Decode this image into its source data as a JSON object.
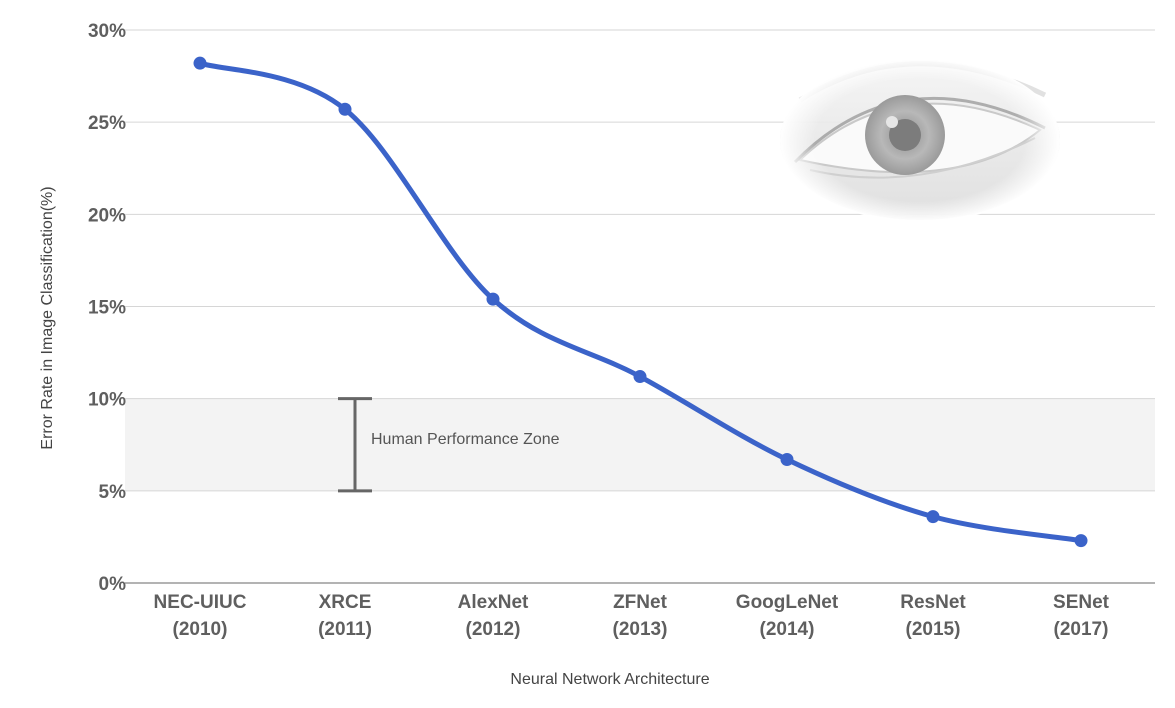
{
  "chart_data": {
    "type": "line",
    "categories": [
      [
        "NEC-UIUC",
        "(2010)"
      ],
      [
        "XRCE",
        "(2011)"
      ],
      [
        "AlexNet",
        "(2012)"
      ],
      [
        "ZFNet",
        "(2013)"
      ],
      [
        "GoogLeNet",
        "(2014)"
      ],
      [
        "ResNet",
        "(2015)"
      ],
      [
        "SENet",
        "(2017)"
      ]
    ],
    "series": [
      {
        "values": [
          28.2,
          25.7,
          15.4,
          11.2,
          6.7,
          3.6,
          2.3
        ],
        "color": "#3b63c9"
      }
    ],
    "xlabel": "Neural Network Architecture",
    "ylabel": "Error Rate in Image Classification(%)",
    "ylim": [
      0,
      30
    ],
    "yticks": [
      0,
      5,
      10,
      15,
      20,
      25,
      30
    ],
    "ytick_labels": [
      "0%",
      "5%",
      "10%",
      "15%",
      "20%",
      "25%",
      "30%"
    ],
    "grid": true,
    "annotations": [
      {
        "text": "Human Performance Zone",
        "y_range": [
          5,
          10
        ],
        "near_category": 1
      }
    ],
    "decoration": "eye-image"
  }
}
